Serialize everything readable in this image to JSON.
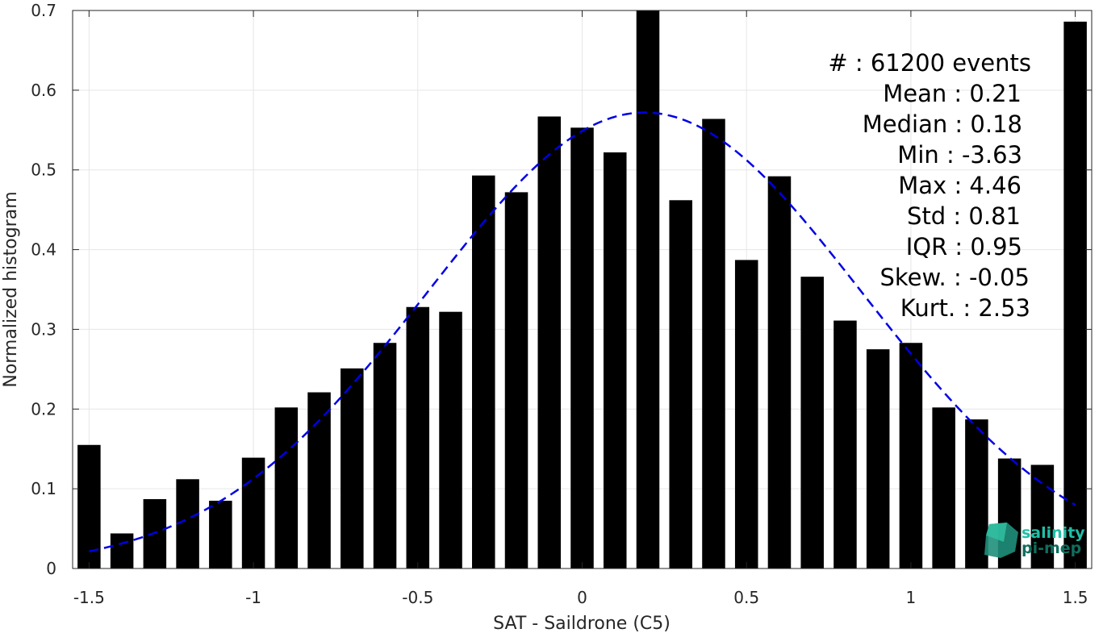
{
  "chart_data": {
    "type": "bar",
    "xlabel": "SAT - Saildrone (C5)",
    "ylabel": "Normalized histogram",
    "xlim": [
      -1.55,
      1.55
    ],
    "ylim": [
      0,
      0.7
    ],
    "bar_width": 0.07,
    "xticks": [
      -1.5,
      -1,
      -0.5,
      0,
      0.5,
      1,
      1.5
    ],
    "xtick_labels": [
      "-1.5",
      "-1",
      "-0.5",
      "0",
      "0.5",
      "1",
      "1.5"
    ],
    "yticks": [
      0,
      0.1,
      0.2,
      0.3,
      0.4,
      0.5,
      0.6,
      0.7
    ],
    "ytick_labels": [
      "0",
      "0.1",
      "0.2",
      "0.3",
      "0.4",
      "0.5",
      "0.6",
      "0.7"
    ],
    "grid": true,
    "x": [
      -1.5,
      -1.4,
      -1.3,
      -1.2,
      -1.1,
      -1.0,
      -0.9,
      -0.8,
      -0.7,
      -0.6,
      -0.5,
      -0.4,
      -0.3,
      -0.2,
      -0.1,
      0.0,
      0.1,
      0.2,
      0.3,
      0.4,
      0.5,
      0.6,
      0.7,
      0.8,
      0.9,
      1.0,
      1.1,
      1.2,
      1.3,
      1.4,
      1.5
    ],
    "values": [
      0.155,
      0.044,
      0.087,
      0.112,
      0.085,
      0.139,
      0.202,
      0.221,
      0.251,
      0.283,
      0.328,
      0.322,
      0.493,
      0.472,
      0.567,
      0.553,
      0.522,
      0.7,
      0.462,
      0.564,
      0.387,
      0.492,
      0.366,
      0.311,
      0.275,
      0.283,
      0.202,
      0.187,
      0.138,
      0.13,
      0.686
    ],
    "fit": {
      "type": "normal",
      "mean": 0.19,
      "peak": 0.572,
      "sigma": 0.66,
      "range": [
        -1.5,
        1.5
      ],
      "style": "dashed",
      "color": "#0000e6"
    },
    "bar_color": "#000000",
    "stats": {
      "events": "#  : 61200 events",
      "mean": "Mean : 0.21",
      "median": "Median : 0.18",
      "min": "Min : -3.63",
      "max": "Max : 4.46",
      "std": "Std : 0.81",
      "iqr": "IQR : 0.95",
      "skew": "Skew. : -0.05",
      "kurt": "Kurt. : 2.53"
    }
  },
  "logo": {
    "line1": "salinity",
    "line2": "pi-mep",
    "color1": "#1fbfa6",
    "color2": "#0f6e5e"
  }
}
